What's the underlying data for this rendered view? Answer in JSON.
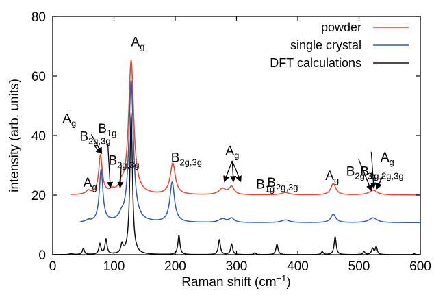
{
  "chart_data": {
    "type": "line",
    "title": "",
    "xlabel": "Raman shift (cm",
    "xlabel_sup": "−1",
    "xlabel_tail": ")",
    "ylabel": "intensity (arb. units)",
    "xlim": [
      0,
      600
    ],
    "ylim": [
      0,
      80
    ],
    "x_ticks": [
      "0",
      "100",
      "200",
      "300",
      "400",
      "500",
      "600"
    ],
    "y_ticks": [
      "0",
      "20",
      "40",
      "60",
      "80"
    ],
    "grid": false,
    "legend_position": "top-right",
    "series": [
      {
        "name": "powder",
        "color": "#e8432e",
        "baseline": 20,
        "x_range": [
          30,
          600
        ],
        "peaks": [
          {
            "x": 58,
            "h": 1.2,
            "w": 4
          },
          {
            "x": 78,
            "h": 13,
            "w": 3.5
          },
          {
            "x": 97,
            "h": 1.0,
            "w": 5
          },
          {
            "x": 112,
            "h": 2.0,
            "w": 4
          },
          {
            "x": 128,
            "h": 45,
            "w": 5
          },
          {
            "x": 196,
            "h": 10.5,
            "w": 5
          },
          {
            "x": 277,
            "h": 2.0,
            "w": 7
          },
          {
            "x": 292,
            "h": 2.6,
            "w": 5
          },
          {
            "x": 380,
            "h": 0.8,
            "w": 8
          },
          {
            "x": 458,
            "h": 3.8,
            "w": 5
          },
          {
            "x": 523,
            "h": 1.6,
            "w": 8
          }
        ]
      },
      {
        "name": "single crystal",
        "color": "#2b5cb8",
        "baseline": 10.7,
        "x_range": [
          45,
          600
        ],
        "peaks": [
          {
            "x": 58,
            "h": 0.6,
            "w": 4
          },
          {
            "x": 79,
            "h": 17.5,
            "w": 3.5
          },
          {
            "x": 112,
            "h": 1.3,
            "w": 4
          },
          {
            "x": 128,
            "h": 47.5,
            "w": 4.5
          },
          {
            "x": 195,
            "h": 13.5,
            "w": 4.5
          },
          {
            "x": 277,
            "h": 1.2,
            "w": 7
          },
          {
            "x": 292,
            "h": 1.4,
            "w": 5
          },
          {
            "x": 380,
            "h": 0.9,
            "w": 8
          },
          {
            "x": 458,
            "h": 2.8,
            "w": 5
          },
          {
            "x": 523,
            "h": 1.6,
            "w": 8
          }
        ]
      },
      {
        "name": "DFT calculations",
        "color": "#111111",
        "baseline": 0,
        "x_range": [
          0,
          600
        ],
        "peaks": [
          {
            "x": 30,
            "h": 0.3,
            "w": 3
          },
          {
            "x": 50,
            "h": 2.0,
            "w": 2
          },
          {
            "x": 77,
            "h": 3.5,
            "w": 2
          },
          {
            "x": 87,
            "h": 5.0,
            "w": 2
          },
          {
            "x": 113,
            "h": 3.0,
            "w": 2
          },
          {
            "x": 128,
            "h": 47.5,
            "w": 2.5
          },
          {
            "x": 206,
            "h": 6.5,
            "w": 2
          },
          {
            "x": 272,
            "h": 5.0,
            "w": 2
          },
          {
            "x": 292,
            "h": 3.5,
            "w": 2
          },
          {
            "x": 330,
            "h": 0.6,
            "w": 2
          },
          {
            "x": 366,
            "h": 3.5,
            "w": 2
          },
          {
            "x": 440,
            "h": 1.0,
            "w": 2
          },
          {
            "x": 461,
            "h": 6.0,
            "w": 2
          },
          {
            "x": 508,
            "h": 1.0,
            "w": 2
          },
          {
            "x": 522,
            "h": 2.0,
            "w": 2
          },
          {
            "x": 528,
            "h": 2.5,
            "w": 2
          },
          {
            "x": 590,
            "h": 0.3,
            "w": 2
          }
        ]
      }
    ],
    "annotations": [
      {
        "id": "ag-128",
        "base": "A",
        "sub": "g",
        "x": 128,
        "y": 70
      },
      {
        "id": "ag-58",
        "base": "A",
        "sub": "g",
        "x": 50,
        "y": 22.8
      },
      {
        "id": "ag-80",
        "base": "A",
        "sub": "g",
        "x": 16,
        "y": 44.3
      },
      {
        "id": "b2g3g-80",
        "base": "B",
        "sub": "2g,3g",
        "x": 44,
        "y": 38.3
      },
      {
        "id": "b1g-95",
        "base": "B",
        "sub": "1g",
        "x": 74,
        "y": 40.9
      },
      {
        "id": "b2g3g-110",
        "base": "B",
        "sub": "2g,3g",
        "x": 91,
        "y": 30.2
      },
      {
        "id": "b2g3g-196",
        "base": "B",
        "sub": "2g,3g",
        "x": 193,
        "y": 31.2
      },
      {
        "id": "ag-292",
        "base": "A",
        "sub": "g",
        "x": 282,
        "y": 33.5
      },
      {
        "id": "b1g-340",
        "base": "B",
        "sub": "1g",
        "x": 332,
        "y": 22.2
      },
      {
        "id": "b2g3g-380",
        "base": "B",
        "sub": "2g,3g",
        "x": 350,
        "y": 22.8
      },
      {
        "id": "ag-458",
        "base": "A",
        "sub": "g",
        "x": 445,
        "y": 25.1
      },
      {
        "id": "b2g3g-500",
        "base": "B",
        "sub": "2g,3g",
        "x": 479,
        "y": 26.6
      },
      {
        "id": "b1g2g3g",
        "base": "B",
        "sub": "1g,2g,3g",
        "x": 502,
        "y": 26.6
      },
      {
        "id": "ag-530",
        "base": "A",
        "sub": "g",
        "x": 535,
        "y": 31.3
      }
    ],
    "arrows": [
      {
        "from": [
          63,
          40.4
        ],
        "to": [
          80,
          34.0
        ]
      },
      {
        "from": [
          68,
          36.5
        ],
        "to": [
          80,
          34.0
        ]
      },
      {
        "from": [
          90,
          37
        ],
        "to": [
          94,
          22.5
        ]
      },
      {
        "from": [
          112,
          30.2
        ],
        "to": [
          110,
          22.5
        ]
      },
      {
        "from": [
          293,
          31.5
        ],
        "to": [
          280,
          24.5
        ]
      },
      {
        "from": [
          293,
          31.5
        ],
        "to": [
          295,
          24.5
        ]
      },
      {
        "from": [
          293,
          31.5
        ],
        "to": [
          307,
          24.5
        ]
      },
      {
        "from": [
          499,
          32.2
        ],
        "to": [
          520,
          21.5
        ]
      },
      {
        "from": [
          520,
          34.5
        ],
        "to": [
          524,
          22.3
        ]
      },
      {
        "from": [
          540,
          27.0
        ],
        "to": [
          529,
          22.1
        ]
      }
    ]
  }
}
